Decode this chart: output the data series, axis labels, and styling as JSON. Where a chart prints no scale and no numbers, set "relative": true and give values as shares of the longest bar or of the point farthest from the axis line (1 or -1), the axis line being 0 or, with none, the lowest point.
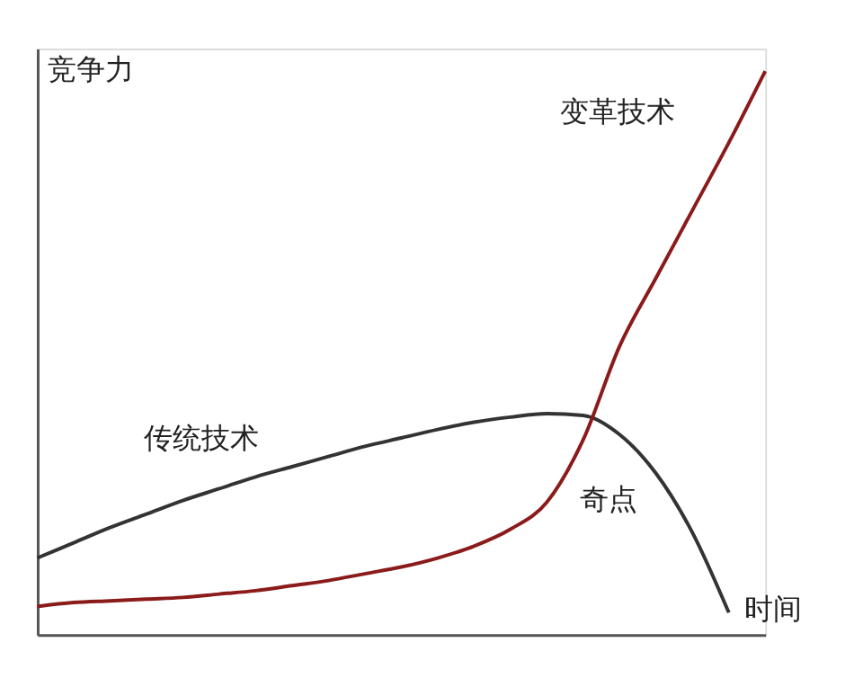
{
  "chart_data": {
    "type": "line",
    "relative": true,
    "xlabel": "时间",
    "ylabel": "竞争力",
    "grid": false,
    "marker": "none",
    "line_style": "solid",
    "annotations": [
      "奇点"
    ],
    "categories": [
      null,
      null,
      null,
      null,
      null,
      null,
      null,
      null,
      null,
      null,
      null,
      null,
      null,
      null,
      null,
      null,
      null,
      null,
      null,
      null,
      null
    ],
    "series": [
      {
        "name": "传统技术",
        "color": "#333333",
        "values": [
          0.136,
          0.163,
          0.19,
          0.214,
          0.238,
          0.259,
          0.28,
          0.298,
          0.316,
          0.334,
          0.349,
          0.364,
          0.377,
          0.386,
          0.392,
          0.389,
          0.355,
          0.286,
          0.181,
          0.039,
          null
        ]
      },
      {
        "name": "变革技术",
        "color": "#8b1a1a",
        "values": [
          0.05,
          0.057,
          0.06,
          0.063,
          0.066,
          0.072,
          0.078,
          0.087,
          0.096,
          0.108,
          0.12,
          0.136,
          0.157,
          0.187,
          0.235,
          0.346,
          0.512,
          0.633,
          0.753,
          0.873,
          1.0
        ]
      }
    ]
  }
}
